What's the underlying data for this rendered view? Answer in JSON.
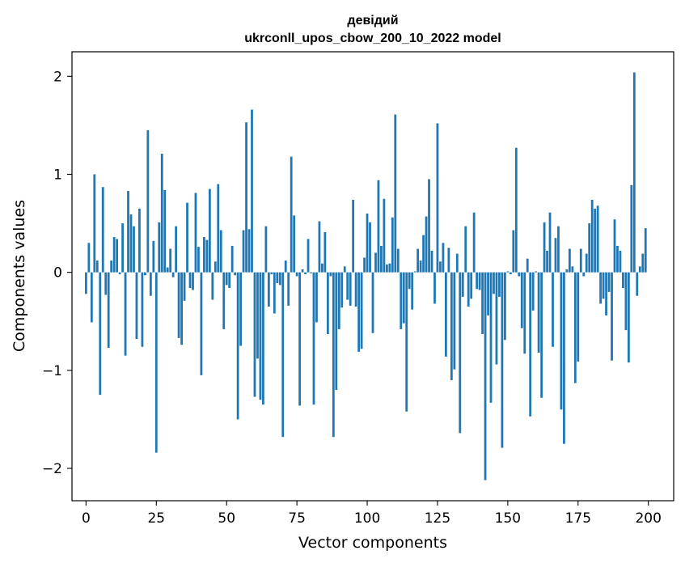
{
  "chart_data": {
    "type": "bar",
    "title_line1": "девідий",
    "title_line2": "ukrconll_upos_cbow_200_10_2022 model",
    "xlabel": "Vector components",
    "ylabel": "Components values",
    "xlim": [
      -5,
      209
    ],
    "ylim": [
      -2.33,
      2.25
    ],
    "xticks": [
      0,
      25,
      50,
      75,
      100,
      125,
      150,
      175,
      200
    ],
    "xtick_labels": [
      "0",
      "25",
      "50",
      "75",
      "100",
      "125",
      "150",
      "175",
      "200"
    ],
    "yticks": [
      -2,
      -1,
      0,
      1,
      2
    ],
    "ytick_labels": [
      "−2",
      "−1",
      "0",
      "1",
      "2"
    ],
    "bar_color": "#1f77b4",
    "grid": false,
    "legend": "none",
    "values": [
      -0.22,
      0.3,
      -0.51,
      1.0,
      0.12,
      -1.25,
      0.87,
      -0.23,
      -0.77,
      0.12,
      0.36,
      0.34,
      -0.02,
      0.5,
      -0.85,
      0.83,
      0.59,
      0.47,
      -0.68,
      0.65,
      -0.76,
      -0.03,
      1.45,
      -0.24,
      0.32,
      -1.84,
      0.51,
      1.21,
      0.84,
      0.05,
      0.24,
      -0.05,
      0.47,
      -0.67,
      -0.74,
      -0.29,
      0.71,
      -0.16,
      -0.18,
      0.81,
      0.26,
      -1.05,
      0.36,
      0.33,
      0.85,
      -0.28,
      0.11,
      0.9,
      0.43,
      -0.58,
      -0.13,
      -0.16,
      0.27,
      -0.03,
      -1.5,
      -0.75,
      0.43,
      1.53,
      0.44,
      1.66,
      -1.27,
      -0.88,
      -1.3,
      -1.35,
      0.47,
      -0.35,
      -0.02,
      -0.42,
      -0.11,
      -0.13,
      -1.68,
      0.12,
      -0.34,
      1.18,
      0.58,
      -0.04,
      -1.36,
      0.03,
      -0.02,
      0.34,
      -0.01,
      -1.35,
      -0.51,
      0.52,
      0.09,
      0.41,
      -0.63,
      -0.04,
      -1.68,
      -1.2,
      -0.58,
      -0.36,
      0.06,
      -0.28,
      -0.34,
      0.74,
      -0.35,
      -0.81,
      -0.78,
      0.15,
      0.6,
      0.51,
      -0.62,
      0.2,
      0.94,
      0.27,
      0.75,
      0.08,
      0.09,
      0.56,
      1.61,
      0.24,
      -0.58,
      -0.52,
      -1.42,
      -0.17,
      -0.38,
      0.01,
      0.24,
      0.12,
      0.38,
      0.57,
      0.95,
      0.22,
      -0.32,
      1.52,
      0.11,
      0.3,
      -0.86,
      0.25,
      -1.1,
      -0.99,
      0.19,
      -1.64,
      -0.25,
      0.47,
      -0.35,
      -0.27,
      0.61,
      -0.17,
      -0.18,
      -0.63,
      -2.12,
      -0.44,
      -1.33,
      -0.22,
      -0.94,
      -0.25,
      -1.79,
      -0.69,
      0.01,
      -0.02,
      0.43,
      1.27,
      -0.04,
      -0.57,
      -0.83,
      0.14,
      -1.47,
      -0.39,
      0.01,
      -0.82,
      -1.28,
      0.51,
      0.22,
      0.61,
      -0.76,
      0.35,
      0.47,
      -1.4,
      -1.75,
      0.03,
      0.24,
      0.06,
      -1.13,
      -0.91,
      0.24,
      -0.04,
      0.19,
      0.5,
      0.74,
      0.65,
      0.68,
      -0.32,
      -0.27,
      -0.44,
      -0.2,
      -0.9,
      0.54,
      0.27,
      0.22,
      -0.16,
      -0.59,
      -0.92,
      0.89,
      2.04,
      -0.24,
      0.06,
      0.19,
      0.45
    ]
  }
}
